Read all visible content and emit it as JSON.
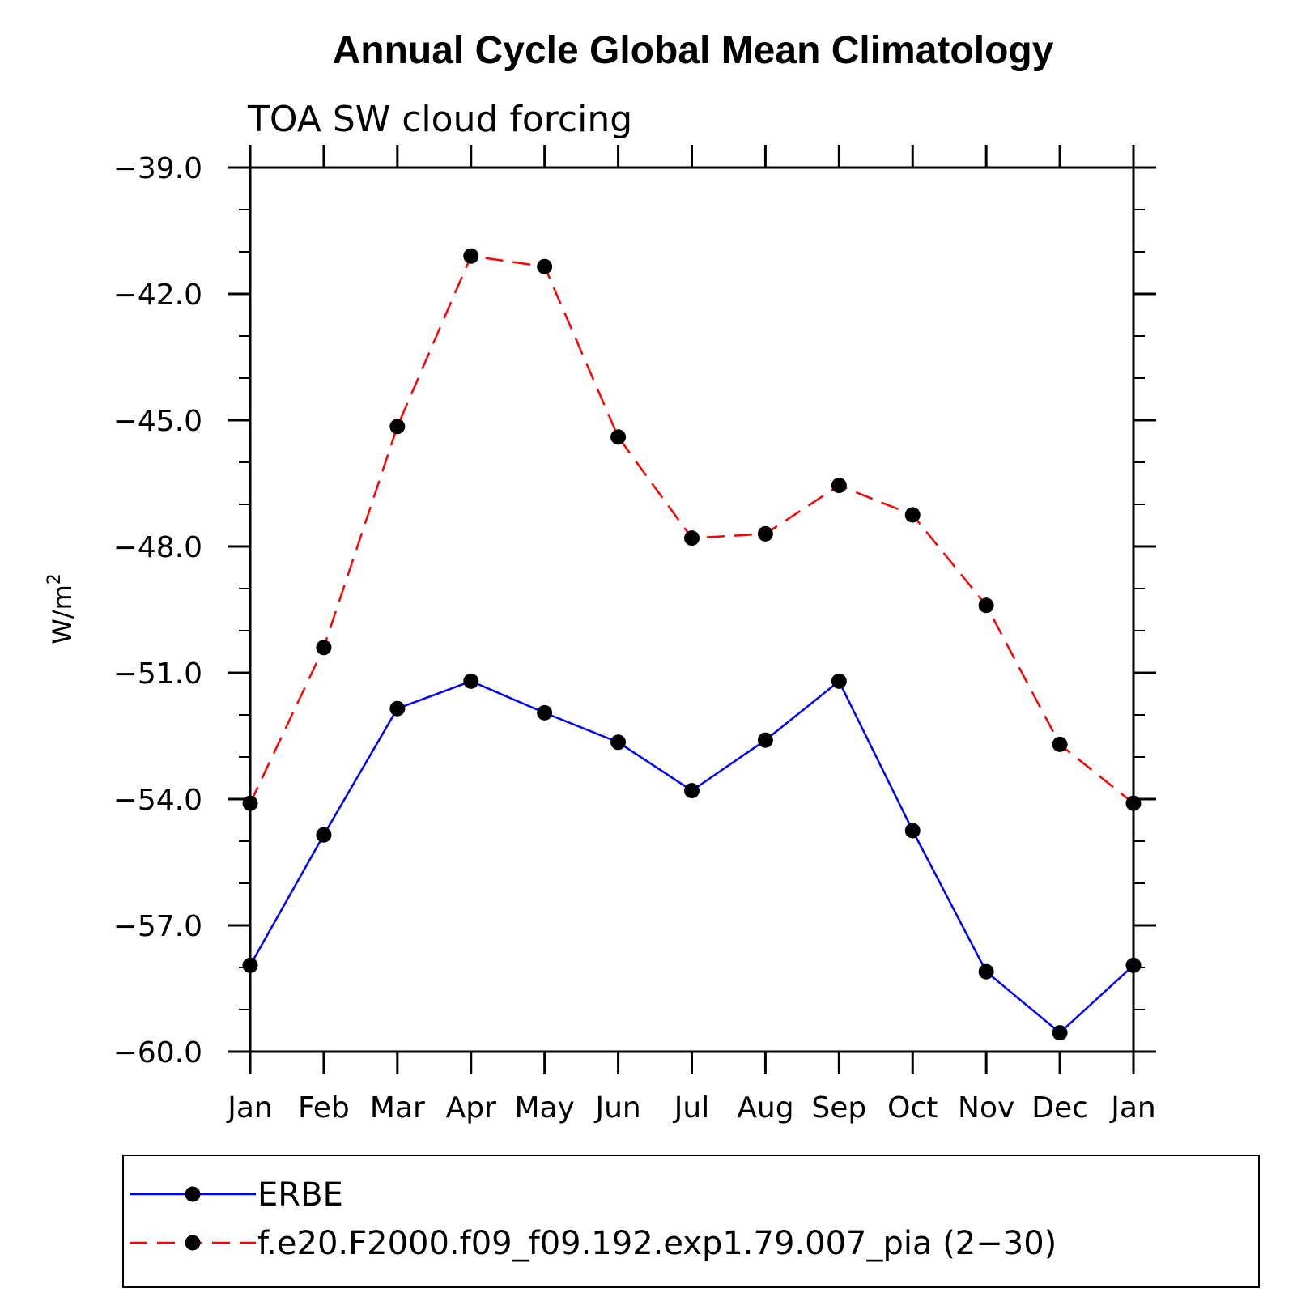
{
  "chart_data": {
    "type": "line",
    "title": "Annual Cycle Global Mean Climatology",
    "subtitle": "TOA SW cloud forcing",
    "ylabel": "W/m",
    "ylabel_superscript": "2",
    "xlabel": "",
    "categories": [
      "Jan",
      "Feb",
      "Mar",
      "Apr",
      "May",
      "Jun",
      "Jul",
      "Aug",
      "Sep",
      "Oct",
      "Nov",
      "Dec",
      "Jan"
    ],
    "ylim": [
      -60.0,
      -39.0
    ],
    "yticks": [
      -39.0,
      -42.0,
      -45.0,
      -48.0,
      -51.0,
      -54.0,
      -57.0,
      -60.0
    ],
    "ytick_labels": [
      "−39.0",
      "−42.0",
      "−45.0",
      "−48.0",
      "−51.0",
      "−54.0",
      "−57.0",
      "−60.0"
    ],
    "grid": false,
    "legend_position": "bottom",
    "series": [
      {
        "name": "ERBE",
        "color": "#0000ff",
        "line_style": "solid",
        "marker": "filled-circle",
        "values": [
          -57.95,
          -54.85,
          -51.85,
          -51.2,
          -51.95,
          -52.65,
          -53.8,
          -52.6,
          -51.2,
          -54.75,
          -58.1,
          -59.55,
          -57.95
        ]
      },
      {
        "name": "f.e20.F2000.f09_f09.192.exp1.79.007_pia (2−30)",
        "color": "#ff0000",
        "line_style": "dashed",
        "marker": "filled-circle",
        "values": [
          -54.1,
          -50.4,
          -45.15,
          -41.1,
          -41.35,
          -45.4,
          -47.8,
          -47.7,
          -46.55,
          -47.25,
          -49.4,
          -52.7,
          -54.1
        ]
      }
    ]
  }
}
